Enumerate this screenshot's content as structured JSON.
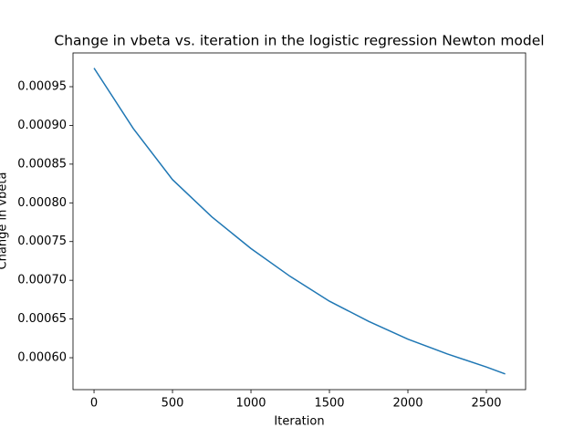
{
  "chart_data": {
    "type": "line",
    "title": "Change in vbeta vs. iteration in the logistic regression Newton model",
    "x_label": "Iteration",
    "y_label": "Change in vbeta",
    "x": [
      0,
      250,
      500,
      750,
      1000,
      1250,
      1500,
      1750,
      2000,
      2250,
      2500,
      2620
    ],
    "series": [
      {
        "color": "#1f77b4",
        "values": [
          0.000974,
          0.000896,
          0.00083,
          0.000782,
          0.000741,
          0.000705,
          0.000673,
          0.000647,
          0.000624,
          0.000605,
          0.000588,
          0.000579
        ]
      }
    ],
    "xlim": [
      -134,
      2750
    ],
    "xticks": [
      0,
      500,
      1000,
      1500,
      2000,
      2500
    ],
    "ylim": [
      0.0005588,
      0.0009936
    ],
    "yticks": [
      {
        "value": 0.0006,
        "label": "0.00060"
      },
      {
        "value": 0.00065,
        "label": "0.00065"
      },
      {
        "value": 0.0007,
        "label": "0.00070"
      },
      {
        "value": 0.00075,
        "label": "0.00075"
      },
      {
        "value": 0.0008,
        "label": "0.00080"
      },
      {
        "value": 0.00085,
        "label": "0.00085"
      },
      {
        "value": 0.0009,
        "label": "0.00090"
      },
      {
        "value": 0.00095,
        "label": "0.00095"
      }
    ]
  }
}
